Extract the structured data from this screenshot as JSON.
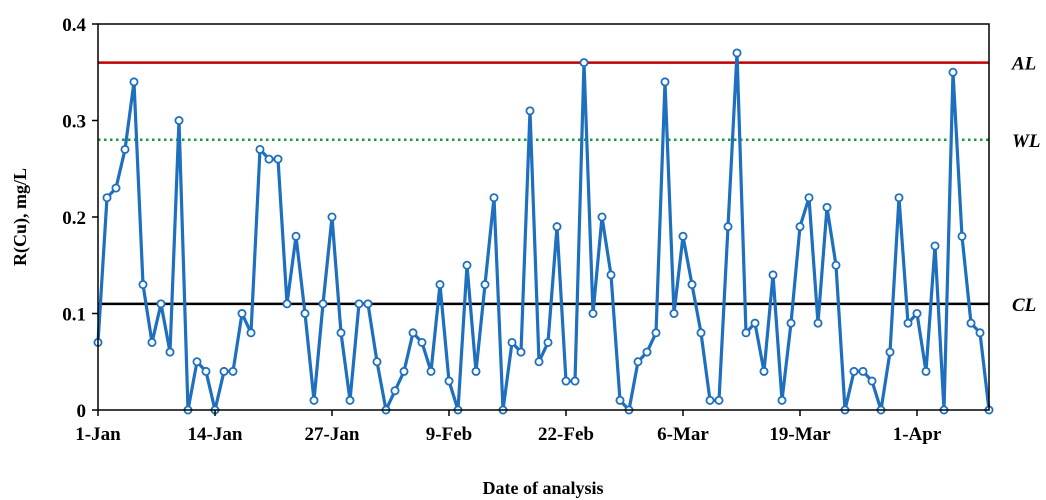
{
  "chart_data": {
    "type": "line",
    "ylabel": "R(Cu), mg/L",
    "xlabel": "Date of analysis",
    "ylim": [
      0,
      0.4
    ],
    "yticks": [
      0,
      0.1,
      0.2,
      0.3,
      0.4
    ],
    "ytick_labels": [
      "0",
      "0.1",
      "0.2",
      "0.3",
      "0.4"
    ],
    "xticks": [
      {
        "label": "1-Jan",
        "index": 0
      },
      {
        "label": "14-Jan",
        "index": 13
      },
      {
        "label": "27-Jan",
        "index": 26
      },
      {
        "label": "9-Feb",
        "index": 39
      },
      {
        "label": "22-Feb",
        "index": 52
      },
      {
        "label": "6-Mar",
        "index": 65
      },
      {
        "label": "19-Mar",
        "index": 78
      },
      {
        "label": "1-Apr",
        "index": 91
      }
    ],
    "grid": false,
    "series": [
      {
        "color": "#1f6fbf",
        "marker": "open-circle",
        "values": [
          0.07,
          0.22,
          0.23,
          0.27,
          0.34,
          0.13,
          0.07,
          0.11,
          0.06,
          0.3,
          0.0,
          0.05,
          0.04,
          0.0,
          0.04,
          0.04,
          0.1,
          0.08,
          0.27,
          0.26,
          0.26,
          0.11,
          0.18,
          0.1,
          0.01,
          0.11,
          0.2,
          0.08,
          0.01,
          0.11,
          0.11,
          0.05,
          0.0,
          0.02,
          0.04,
          0.08,
          0.07,
          0.04,
          0.13,
          0.03,
          0.0,
          0.15,
          0.04,
          0.13,
          0.22,
          0.0,
          0.07,
          0.06,
          0.31,
          0.05,
          0.07,
          0.19,
          0.03,
          0.03,
          0.36,
          0.1,
          0.2,
          0.14,
          0.01,
          0.0,
          0.05,
          0.06,
          0.08,
          0.34,
          0.1,
          0.18,
          0.13,
          0.08,
          0.01,
          0.01,
          0.19,
          0.37,
          0.08,
          0.09,
          0.04,
          0.14,
          0.01,
          0.09,
          0.19,
          0.22,
          0.09,
          0.21,
          0.15,
          0.0,
          0.04,
          0.04,
          0.03,
          0.0,
          0.06,
          0.22,
          0.09,
          0.1,
          0.04,
          0.17,
          0.0,
          0.35,
          0.18,
          0.09,
          0.08,
          0.0
        ]
      }
    ],
    "control_lines": [
      {
        "label": "AL",
        "value": 0.36,
        "color": "#c00000",
        "style": "solid"
      },
      {
        "label": "WL",
        "value": 0.28,
        "color": "#1a9a3a",
        "style": "dotted"
      },
      {
        "label": "CL",
        "value": 0.11,
        "color": "#000000",
        "style": "solid"
      }
    ]
  }
}
